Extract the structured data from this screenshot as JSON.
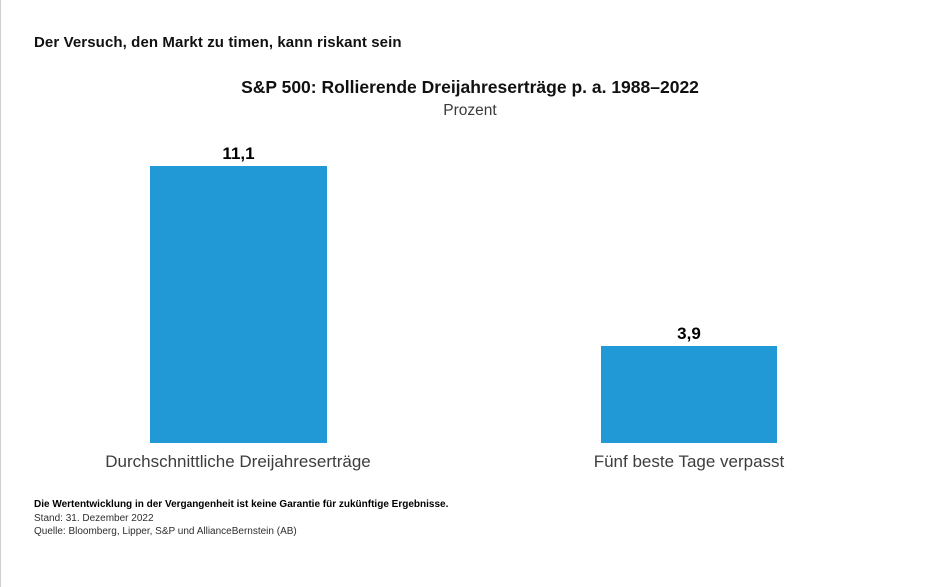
{
  "page": {
    "headline": "Der Versuch, den Markt zu timen, kann riskant sein"
  },
  "chart_data": {
    "type": "bar",
    "title": "S&P 500: Rollierende Dreijahreserträge p. a. 1988–2022",
    "subtitle": "Prozent",
    "categories": [
      "Durchschnittliche Dreijahreserträge",
      "Fünf beste Tage verpasst"
    ],
    "values": [
      11.1,
      3.9
    ],
    "value_labels": [
      "11,1",
      "3,9"
    ],
    "xlabel": "",
    "ylabel": "Prozent",
    "ylim": [
      0,
      12
    ],
    "grid": false,
    "legend": "none",
    "axis_lines": "none",
    "bar_color": "#2199d6"
  },
  "footnotes": {
    "disclaimer": "Die Wertentwicklung in der Vergangenheit ist keine Garantie für zukünftige Ergebnisse.",
    "as_of": "Stand: 31. Dezember 2022",
    "source": "Quelle: Bloomberg, Lipper, S&P und AllianceBernstein (AB)"
  }
}
